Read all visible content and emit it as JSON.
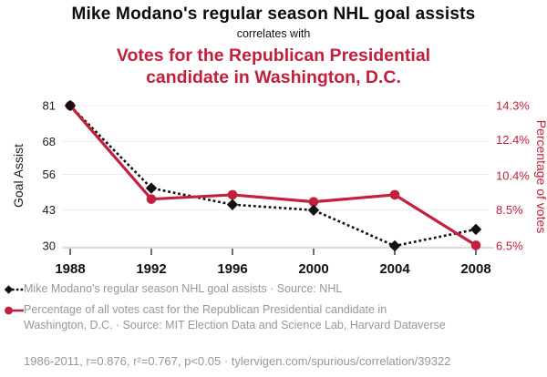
{
  "header": {
    "title": "Mike Modano's regular season NHL goal assists",
    "connector": "correlates with",
    "subtitle_lines": [
      "Votes for the Republican Presidential",
      "candidate in Washington, D.C."
    ]
  },
  "chart_data": {
    "type": "line",
    "x": [
      1988,
      1992,
      1996,
      2000,
      2004,
      2008
    ],
    "x_tick_labels": [
      "1988",
      "1992",
      "1996",
      "2000",
      "2004",
      "2008"
    ],
    "series": [
      {
        "name": "Mike Modano's regular season NHL goal assists",
        "axis": "left",
        "color": "#111111",
        "line_style": "dashed",
        "marker": "diamond",
        "values": [
          81,
          51,
          45,
          43,
          30,
          36
        ]
      },
      {
        "name": "Percentage of all votes cast for the Republican Presidential candidate in Washington, D.C.",
        "axis": "right",
        "color": "#c2203c",
        "line_style": "solid",
        "marker": "circle",
        "values": [
          14.3,
          9.1,
          9.34,
          8.95,
          9.34,
          6.53
        ]
      }
    ],
    "left_axis": {
      "label": "Goal Assist",
      "ticks": [
        81,
        68,
        56,
        43,
        30
      ],
      "range": [
        30,
        81
      ]
    },
    "right_axis": {
      "label": "Percentage of votes",
      "ticks": [
        "14.3%",
        "12.4%",
        "10.4%",
        "8.5%",
        "6.5%"
      ],
      "range": [
        6.5,
        14.3
      ]
    },
    "grid": true,
    "legend_position": "bottom",
    "title": "Mike Modano's regular season NHL goal assists correlates with Votes for the Republican Presidential candidate in Washington, D.C."
  },
  "legend": {
    "items": [
      {
        "label": "Mike Modano's regular season NHL goal assists · Source: NHL",
        "marker": "black-diamond-dashed-line"
      },
      {
        "label": "Percentage of all votes cast for the Republican Presidential candidate in Washington, D.C. · Source: MIT Election Data and Science Lab, Harvard Dataverse",
        "marker": "red-circle-solid-line"
      }
    ]
  },
  "footer": {
    "stats": "1986-2011, r=0.876, r²=0.767, p<0.05 · tylervigen.com/spurious/correlation/39322"
  },
  "colors": {
    "accent_red": "#c2203c",
    "series_black": "#111111",
    "muted_text": "#979797",
    "grid_line": "#ececec",
    "axis_line": "#c6c6c6",
    "tick_mark": "#333333"
  }
}
